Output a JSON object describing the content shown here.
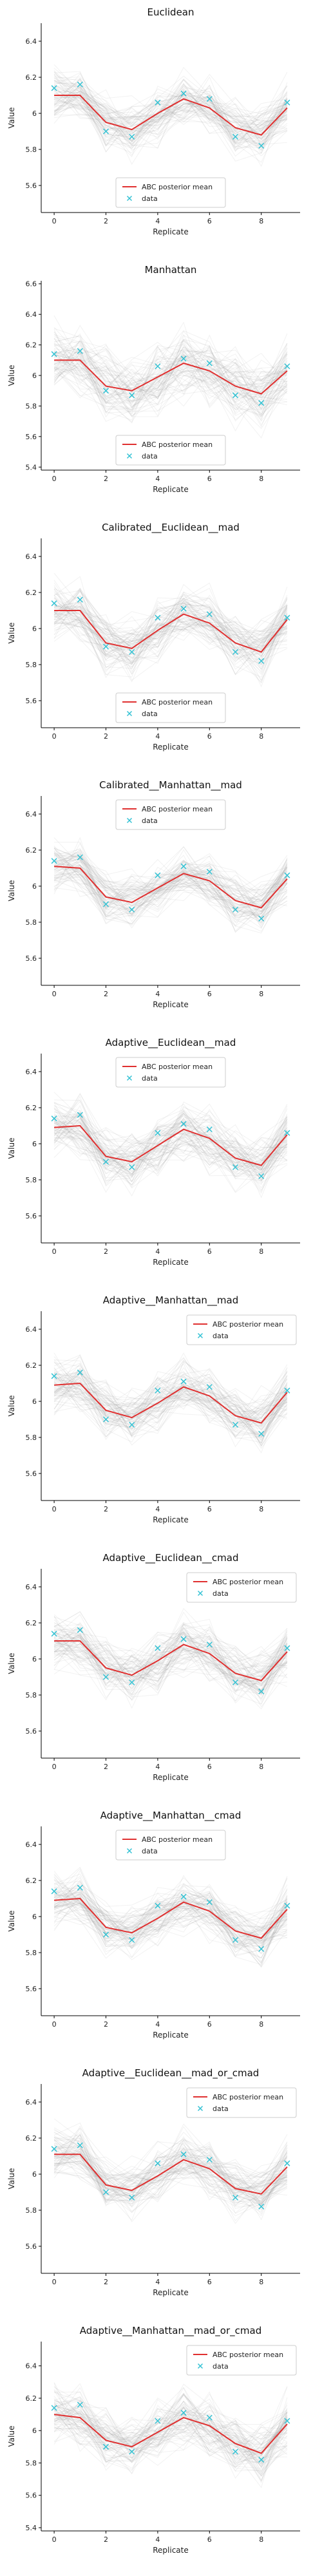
{
  "colors": {
    "mean_line": "#e03030",
    "data_marker": "#35c3d4",
    "sample_lines": "#9a9a9a"
  },
  "chart_data": [
    {
      "type": "line",
      "title": "Euclidean",
      "xlabel": "Replicate",
      "ylabel": "Value",
      "xticks": [
        0,
        2,
        4,
        6,
        8
      ],
      "yticks": [
        5.6,
        5.8,
        6.0,
        6.2,
        6.4
      ],
      "xlim": [
        -0.5,
        9.5
      ],
      "ylim": [
        5.45,
        6.5
      ],
      "legend_position": "bottom-center",
      "x": [
        0,
        1,
        2,
        3,
        4,
        5,
        6,
        7,
        8,
        9
      ],
      "series": [
        {
          "name": "ABC posterior mean",
          "values": [
            6.1,
            6.1,
            5.95,
            5.91,
            6.0,
            6.08,
            6.03,
            5.92,
            5.88,
            6.03
          ]
        },
        {
          "name": "data",
          "values": [
            6.14,
            6.16,
            5.9,
            5.87,
            6.06,
            6.11,
            6.08,
            5.87,
            5.82,
            6.06
          ]
        }
      ],
      "sample_band_width": 0.16
    },
    {
      "type": "line",
      "title": "Manhattan",
      "xlabel": "Replicate",
      "ylabel": "Value",
      "xticks": [
        0,
        2,
        4,
        6,
        8
      ],
      "yticks": [
        5.4,
        5.6,
        5.8,
        6.0,
        6.2,
        6.4,
        6.6
      ],
      "xlim": [
        -0.5,
        9.5
      ],
      "ylim": [
        5.38,
        6.62
      ],
      "legend_position": "bottom-center",
      "x": [
        0,
        1,
        2,
        3,
        4,
        5,
        6,
        7,
        8,
        9
      ],
      "series": [
        {
          "name": "ABC posterior mean",
          "values": [
            6.1,
            6.1,
            5.93,
            5.9,
            5.99,
            6.08,
            6.03,
            5.93,
            5.88,
            6.03
          ]
        },
        {
          "name": "data",
          "values": [
            6.14,
            6.16,
            5.9,
            5.87,
            6.06,
            6.11,
            6.08,
            5.87,
            5.82,
            6.06
          ]
        }
      ],
      "sample_band_width": 0.24
    },
    {
      "type": "line",
      "title": "Calibrated__Euclidean__mad",
      "xlabel": "Replicate",
      "ylabel": "Value",
      "xticks": [
        0,
        2,
        4,
        6,
        8
      ],
      "yticks": [
        5.6,
        5.8,
        6.0,
        6.2,
        6.4
      ],
      "xlim": [
        -0.5,
        9.5
      ],
      "ylim": [
        5.45,
        6.5
      ],
      "legend_position": "bottom-center",
      "x": [
        0,
        1,
        2,
        3,
        4,
        5,
        6,
        7,
        8,
        9
      ],
      "series": [
        {
          "name": "ABC posterior mean",
          "values": [
            6.1,
            6.1,
            5.92,
            5.89,
            5.99,
            6.08,
            6.03,
            5.92,
            5.87,
            6.05
          ]
        },
        {
          "name": "data",
          "values": [
            6.14,
            6.16,
            5.9,
            5.87,
            6.06,
            6.11,
            6.08,
            5.87,
            5.82,
            6.06
          ]
        }
      ],
      "sample_band_width": 0.18
    },
    {
      "type": "line",
      "title": "Calibrated__Manhattan__mad",
      "xlabel": "Replicate",
      "ylabel": "Value",
      "xticks": [
        0,
        2,
        4,
        6,
        8
      ],
      "yticks": [
        5.6,
        5.8,
        6.0,
        6.2,
        6.4
      ],
      "xlim": [
        -0.5,
        9.5
      ],
      "ylim": [
        5.45,
        6.5
      ],
      "legend_position": "top-center",
      "x": [
        0,
        1,
        2,
        3,
        4,
        5,
        6,
        7,
        8,
        9
      ],
      "series": [
        {
          "name": "ABC posterior mean",
          "values": [
            6.11,
            6.1,
            5.94,
            5.91,
            5.99,
            6.07,
            6.03,
            5.92,
            5.88,
            6.04
          ]
        },
        {
          "name": "data",
          "values": [
            6.14,
            6.16,
            5.9,
            5.87,
            6.06,
            6.11,
            6.08,
            5.87,
            5.82,
            6.06
          ]
        }
      ],
      "sample_band_width": 0.16
    },
    {
      "type": "line",
      "title": "Adaptive__Euclidean__mad",
      "xlabel": "Replicate",
      "ylabel": "Value",
      "xticks": [
        0,
        2,
        4,
        6,
        8
      ],
      "yticks": [
        5.6,
        5.8,
        6.0,
        6.2,
        6.4
      ],
      "xlim": [
        -0.5,
        9.5
      ],
      "ylim": [
        5.45,
        6.5
      ],
      "legend_position": "top-center",
      "x": [
        0,
        1,
        2,
        3,
        4,
        5,
        6,
        7,
        8,
        9
      ],
      "series": [
        {
          "name": "ABC posterior mean",
          "values": [
            6.09,
            6.1,
            5.93,
            5.9,
            5.99,
            6.08,
            6.03,
            5.92,
            5.88,
            6.05
          ]
        },
        {
          "name": "data",
          "values": [
            6.14,
            6.16,
            5.9,
            5.87,
            6.06,
            6.11,
            6.08,
            5.87,
            5.82,
            6.06
          ]
        }
      ],
      "sample_band_width": 0.18
    },
    {
      "type": "line",
      "title": "Adaptive__Manhattan__mad",
      "xlabel": "Replicate",
      "ylabel": "Value",
      "xticks": [
        0,
        2,
        4,
        6,
        8
      ],
      "yticks": [
        5.6,
        5.8,
        6.0,
        6.2,
        6.4
      ],
      "xlim": [
        -0.5,
        9.5
      ],
      "ylim": [
        5.45,
        6.5
      ],
      "legend_position": "top-right",
      "x": [
        0,
        1,
        2,
        3,
        4,
        5,
        6,
        7,
        8,
        9
      ],
      "series": [
        {
          "name": "ABC posterior mean",
          "values": [
            6.09,
            6.1,
            5.95,
            5.91,
            5.99,
            6.08,
            6.03,
            5.92,
            5.88,
            6.05
          ]
        },
        {
          "name": "data",
          "values": [
            6.14,
            6.16,
            5.9,
            5.87,
            6.06,
            6.11,
            6.08,
            5.87,
            5.82,
            6.06
          ]
        }
      ],
      "sample_band_width": 0.16
    },
    {
      "type": "line",
      "title": "Adaptive__Euclidean__cmad",
      "xlabel": "Replicate",
      "ylabel": "Value",
      "xticks": [
        0,
        2,
        4,
        6,
        8
      ],
      "yticks": [
        5.6,
        5.8,
        6.0,
        6.2,
        6.4
      ],
      "xlim": [
        -0.5,
        9.5
      ],
      "ylim": [
        5.45,
        6.5
      ],
      "legend_position": "top-right",
      "x": [
        0,
        1,
        2,
        3,
        4,
        5,
        6,
        7,
        8,
        9
      ],
      "series": [
        {
          "name": "ABC posterior mean",
          "values": [
            6.1,
            6.1,
            5.95,
            5.91,
            5.99,
            6.08,
            6.03,
            5.92,
            5.88,
            6.04
          ]
        },
        {
          "name": "data",
          "values": [
            6.14,
            6.16,
            5.9,
            5.87,
            6.06,
            6.11,
            6.08,
            5.87,
            5.82,
            6.06
          ]
        }
      ],
      "sample_band_width": 0.17
    },
    {
      "type": "line",
      "title": "Adaptive__Manhattan__cmad",
      "xlabel": "Replicate",
      "ylabel": "Value",
      "xticks": [
        0,
        2,
        4,
        6,
        8
      ],
      "yticks": [
        5.6,
        5.8,
        6.0,
        6.2,
        6.4
      ],
      "xlim": [
        -0.5,
        9.5
      ],
      "ylim": [
        5.45,
        6.5
      ],
      "legend_position": "top-center",
      "x": [
        0,
        1,
        2,
        3,
        4,
        5,
        6,
        7,
        8,
        9
      ],
      "series": [
        {
          "name": "ABC posterior mean",
          "values": [
            6.09,
            6.1,
            5.94,
            5.91,
            5.99,
            6.08,
            6.03,
            5.92,
            5.88,
            6.04
          ]
        },
        {
          "name": "data",
          "values": [
            6.14,
            6.16,
            5.9,
            5.87,
            6.06,
            6.11,
            6.08,
            5.87,
            5.82,
            6.06
          ]
        }
      ],
      "sample_band_width": 0.15
    },
    {
      "type": "line",
      "title": "Adaptive__Euclidean__mad_or_cmad",
      "xlabel": "Replicate",
      "ylabel": "Value",
      "xticks": [
        0,
        2,
        4,
        6,
        8
      ],
      "yticks": [
        5.6,
        5.8,
        6.0,
        6.2,
        6.4
      ],
      "xlim": [
        -0.5,
        9.5
      ],
      "ylim": [
        5.45,
        6.5
      ],
      "legend_position": "top-right",
      "x": [
        0,
        1,
        2,
        3,
        4,
        5,
        6,
        7,
        8,
        9
      ],
      "series": [
        {
          "name": "ABC posterior mean",
          "values": [
            6.11,
            6.11,
            5.94,
            5.91,
            5.99,
            6.08,
            6.03,
            5.92,
            5.89,
            6.04
          ]
        },
        {
          "name": "data",
          "values": [
            6.14,
            6.16,
            5.9,
            5.87,
            6.06,
            6.11,
            6.08,
            5.87,
            5.82,
            6.06
          ]
        }
      ],
      "sample_band_width": 0.16
    },
    {
      "type": "line",
      "title": "Adaptive__Manhattan__mad_or_cmad",
      "xlabel": "Replicate",
      "ylabel": "Value",
      "xticks": [
        0,
        2,
        4,
        6,
        8
      ],
      "yticks": [
        5.4,
        5.6,
        5.8,
        6.0,
        6.2,
        6.4
      ],
      "xlim": [
        -0.5,
        9.5
      ],
      "ylim": [
        5.38,
        6.55
      ],
      "legend_position": "top-right",
      "x": [
        0,
        1,
        2,
        3,
        4,
        5,
        6,
        7,
        8,
        9
      ],
      "series": [
        {
          "name": "ABC posterior mean",
          "values": [
            6.1,
            6.08,
            5.94,
            5.9,
            5.99,
            6.08,
            6.03,
            5.92,
            5.86,
            6.04
          ]
        },
        {
          "name": "data",
          "values": [
            6.14,
            6.16,
            5.9,
            5.87,
            6.06,
            6.11,
            6.08,
            5.87,
            5.82,
            6.06
          ]
        }
      ],
      "sample_band_width": 0.2
    }
  ]
}
